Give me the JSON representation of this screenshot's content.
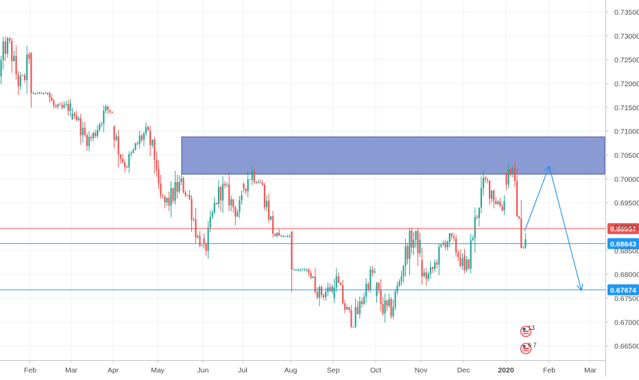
{
  "chart_data": {
    "type": "candlestick",
    "ylim": [
      0.662,
      0.7375
    ],
    "y_ticks": [
      "0.73500",
      "0.73000",
      "0.72500",
      "0.72000",
      "0.71500",
      "0.71000",
      "0.70500",
      "0.70000",
      "0.69500",
      "0.69000",
      "0.68500",
      "0.68000",
      "0.67500",
      "0.67000",
      "0.66500"
    ],
    "x_labels": [
      "Feb",
      "Mar",
      "Apr",
      "May",
      "Jun",
      "Jul",
      "Aug",
      "Sep",
      "Oct",
      "Nov",
      "Dec",
      "2020",
      "Feb",
      "Mar"
    ],
    "grid": true,
    "colors": {
      "up": "#26a69a",
      "down": "#ef5350",
      "zone_fill": "#7a8ccc",
      "zone_border": "#3a4fa0",
      "support_line": "#2196f3",
      "current_line": "#ef5350",
      "arrow": "#2196f3",
      "grid": "#eef0f3",
      "axis_text": "#4a4a4a"
    },
    "resistance_zone": {
      "low": 0.701,
      "high": 0.7088
    },
    "support_levels": [
      "0.68643",
      "0.67674"
    ],
    "current_price": "0.68957",
    "projection": [
      {
        "label": "Jan 2020",
        "price": 0.689
      },
      {
        "label": "Feb",
        "price": 0.7027
      },
      {
        "label": "Mar",
        "price": 0.6766
      }
    ],
    "event_markers": [
      "13",
      "6 7"
    ],
    "segments": [
      {
        "from": "start",
        "to": "Feb",
        "start": 0.7215,
        "end": 0.7265,
        "min": 0.708,
        "max": 0.7295
      },
      {
        "from": "Feb",
        "to": "Mar",
        "start": 0.7265,
        "end": 0.7125,
        "min": 0.7065,
        "max": 0.718
      },
      {
        "from": "Mar",
        "to": "Apr",
        "start": 0.7125,
        "end": 0.711,
        "min": 0.7015,
        "max": 0.7155
      },
      {
        "from": "Apr",
        "to": "May",
        "start": 0.711,
        "end": 0.702,
        "min": 0.7005,
        "max": 0.72
      },
      {
        "from": "May",
        "to": "Jun",
        "start": 0.702,
        "end": 0.6875,
        "min": 0.686,
        "max": 0.706
      },
      {
        "from": "Jun",
        "to": "Jul",
        "start": 0.6875,
        "end": 0.699,
        "min": 0.683,
        "max": 0.7015
      },
      {
        "from": "Jul",
        "to": "Aug",
        "start": 0.699,
        "end": 0.689,
        "min": 0.688,
        "max": 0.708
      },
      {
        "from": "Aug",
        "to": "Sep",
        "start": 0.689,
        "end": 0.675,
        "min": 0.6678,
        "max": 0.681
      },
      {
        "from": "Sep",
        "to": "Oct",
        "start": 0.675,
        "end": 0.6755,
        "min": 0.669,
        "max": 0.6875
      },
      {
        "from": "Oct",
        "to": "Nov",
        "start": 0.6755,
        "end": 0.683,
        "min": 0.6672,
        "max": 0.6895
      },
      {
        "from": "Nov",
        "to": "Dec",
        "start": 0.683,
        "end": 0.684,
        "min": 0.676,
        "max": 0.6905
      },
      {
        "from": "Dec",
        "to": "2020",
        "start": 0.684,
        "end": 0.701,
        "min": 0.6805,
        "max": 0.703
      },
      {
        "from": "2020",
        "to": "end",
        "start": 0.701,
        "end": 0.6895,
        "min": 0.685,
        "max": 0.7035
      }
    ]
  }
}
